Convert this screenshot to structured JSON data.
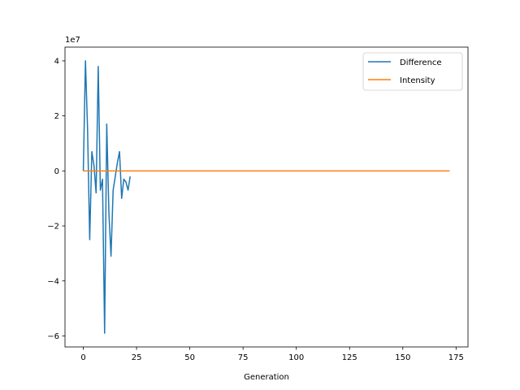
{
  "chart_data": {
    "type": "line",
    "xlabel": "Generation",
    "ylabel": "",
    "offset_text": "1e7",
    "xlim": [
      -8.6,
      180.6
    ],
    "ylim": [
      -6.4,
      4.5
    ],
    "y_unit_multiplier": 10000000,
    "xticks": [
      0,
      25,
      50,
      75,
      100,
      125,
      150,
      175
    ],
    "yticks": [
      -6,
      -4,
      -2,
      0,
      2,
      4
    ],
    "grid": false,
    "legend_position": "top-right",
    "series": [
      {
        "name": "Difference",
        "color": "#1f77b4",
        "x": [
          0,
          1,
          2,
          3,
          4,
          5,
          6,
          7,
          8,
          9,
          10,
          11,
          12,
          13,
          14,
          15,
          16,
          17,
          18,
          19,
          20,
          21,
          22
        ],
        "y": [
          0,
          4.0,
          1.5,
          -2.5,
          0.7,
          0.2,
          -0.8,
          3.8,
          -0.7,
          -0.3,
          -5.9,
          1.7,
          -1.5,
          -3.1,
          -0.7,
          -0.2,
          0.3,
          0.7,
          -1.0,
          -0.3,
          -0.4,
          -0.7,
          -0.2
        ]
      },
      {
        "name": "Intensity",
        "color": "#ff7f0e",
        "x": [
          0,
          172
        ],
        "y": [
          0,
          0
        ]
      }
    ]
  }
}
